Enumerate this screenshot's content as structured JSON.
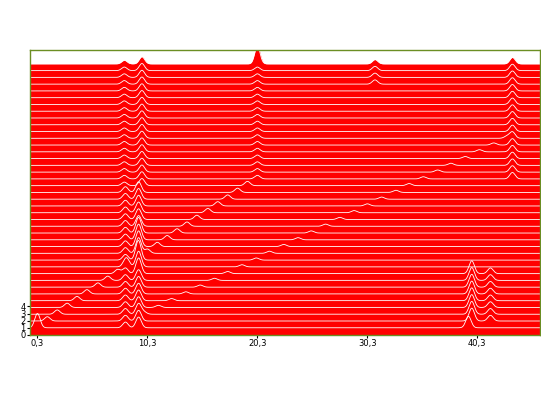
{
  "chart_data": {
    "type": "waterfall",
    "color": "#ff0000",
    "xlim": [
      -0.4,
      46.0
    ],
    "ylim": [
      0,
      40
    ],
    "xticks": [
      {
        "value": 0.3,
        "label": "0,3"
      },
      {
        "value": 10.3,
        "label": "10,3"
      },
      {
        "value": 20.3,
        "label": "20,3"
      },
      {
        "value": 30.3,
        "label": "30,3"
      },
      {
        "value": 40.3,
        "label": "40,3"
      }
    ],
    "yticks": [
      0,
      1,
      2,
      3,
      4
    ],
    "series": [
      {
        "baseline": 1.0,
        "peaks": [
          [
            0.3,
            2.0
          ],
          [
            9.5,
            1.5
          ],
          [
            8.3,
            0.8
          ],
          [
            39.5,
            1.6
          ]
        ]
      },
      {
        "baseline": 1.95,
        "peaks": [
          [
            1.2,
            0.6
          ],
          [
            9.5,
            1.5
          ],
          [
            8.3,
            0.8
          ],
          [
            39.8,
            1.8
          ],
          [
            41.5,
            0.8
          ]
        ]
      },
      {
        "baseline": 2.9,
        "peaks": [
          [
            2.1,
            0.6
          ],
          [
            9.5,
            1.5
          ],
          [
            8.3,
            0.8
          ],
          [
            10.0,
            0.3
          ],
          [
            39.8,
            1.8
          ],
          [
            41.5,
            0.8
          ]
        ]
      },
      {
        "baseline": 3.85,
        "peaks": [
          [
            3.0,
            0.6
          ],
          [
            9.5,
            1.5
          ],
          [
            8.3,
            0.8
          ],
          [
            11.3,
            0.3
          ],
          [
            39.8,
            1.8
          ],
          [
            41.5,
            0.8
          ]
        ]
      },
      {
        "baseline": 4.8,
        "peaks": [
          [
            3.9,
            0.6
          ],
          [
            9.5,
            1.5
          ],
          [
            8.3,
            0.8
          ],
          [
            12.5,
            0.3
          ],
          [
            39.8,
            1.8
          ],
          [
            41.5,
            0.8
          ]
        ]
      },
      {
        "baseline": 5.75,
        "peaks": [
          [
            4.8,
            0.6
          ],
          [
            9.5,
            1.5
          ],
          [
            8.3,
            0.8
          ],
          [
            13.8,
            0.3
          ],
          [
            39.8,
            1.8
          ],
          [
            41.5,
            0.8
          ]
        ]
      },
      {
        "baseline": 6.7,
        "peaks": [
          [
            5.8,
            0.6
          ],
          [
            9.5,
            1.5
          ],
          [
            8.3,
            0.8
          ],
          [
            15.1,
            0.3
          ],
          [
            39.8,
            1.8
          ],
          [
            41.5,
            0.8
          ]
        ]
      },
      {
        "baseline": 7.65,
        "peaks": [
          [
            6.7,
            0.6
          ],
          [
            9.5,
            1.5
          ],
          [
            8.3,
            0.8
          ],
          [
            16.4,
            0.3
          ],
          [
            39.8,
            1.8
          ],
          [
            41.5,
            0.8
          ]
        ]
      },
      {
        "baseline": 8.6,
        "peaks": [
          [
            7.6,
            0.6
          ],
          [
            9.5,
            2.2
          ],
          [
            8.3,
            0.8
          ],
          [
            17.6,
            0.3
          ],
          [
            39.8,
            1.8
          ],
          [
            41.5,
            0.8
          ]
        ]
      },
      {
        "baseline": 9.55,
        "peaks": [
          [
            8.5,
            0.6
          ],
          [
            9.5,
            2.2
          ],
          [
            8.3,
            0.8
          ],
          [
            18.9,
            0.3
          ]
        ]
      },
      {
        "baseline": 10.5,
        "peaks": [
          [
            9.4,
            0.6
          ],
          [
            9.5,
            2.2
          ],
          [
            8.3,
            0.8
          ],
          [
            20.2,
            0.3
          ]
        ]
      },
      {
        "baseline": 11.45,
        "peaks": [
          [
            10.3,
            0.6
          ],
          [
            9.5,
            2.2
          ],
          [
            8.3,
            0.8
          ],
          [
            21.4,
            0.3
          ]
        ]
      },
      {
        "baseline": 12.4,
        "peaks": [
          [
            11.2,
            0.6
          ],
          [
            9.5,
            2.2
          ],
          [
            8.3,
            0.8
          ],
          [
            22.7,
            0.3
          ]
        ]
      },
      {
        "baseline": 13.35,
        "peaks": [
          [
            12.1,
            0.6
          ],
          [
            9.5,
            2.2
          ],
          [
            8.3,
            0.8
          ],
          [
            24.0,
            0.3
          ]
        ]
      },
      {
        "baseline": 14.3,
        "peaks": [
          [
            13.0,
            0.6
          ],
          [
            9.5,
            2.2
          ],
          [
            8.3,
            0.8
          ],
          [
            25.2,
            0.3
          ]
        ]
      },
      {
        "baseline": 15.25,
        "peaks": [
          [
            13.9,
            0.6
          ],
          [
            9.5,
            1.5
          ],
          [
            8.3,
            0.8
          ],
          [
            26.5,
            0.3
          ]
        ]
      },
      {
        "baseline": 16.2,
        "peaks": [
          [
            14.8,
            0.6
          ],
          [
            9.5,
            1.5
          ],
          [
            8.3,
            0.8
          ],
          [
            27.8,
            0.3
          ]
        ]
      },
      {
        "baseline": 17.15,
        "peaks": [
          [
            15.8,
            0.6
          ],
          [
            9.5,
            1.5
          ],
          [
            8.3,
            0.8
          ],
          [
            29.1,
            0.3
          ]
        ]
      },
      {
        "baseline": 18.1,
        "peaks": [
          [
            16.7,
            0.6
          ],
          [
            9.5,
            1.5
          ],
          [
            8.3,
            0.8
          ],
          [
            30.3,
            0.3
          ]
        ]
      },
      {
        "baseline": 19.05,
        "peaks": [
          [
            17.6,
            0.6
          ],
          [
            9.5,
            1.5
          ],
          [
            8.3,
            0.8
          ],
          [
            31.6,
            0.3
          ]
        ]
      },
      {
        "baseline": 20.0,
        "peaks": [
          [
            18.5,
            0.6
          ],
          [
            9.5,
            1.5
          ],
          [
            8.3,
            0.8
          ],
          [
            32.9,
            0.3
          ]
        ]
      },
      {
        "baseline": 20.95,
        "peaks": [
          [
            19.4,
            0.6
          ],
          [
            9.8,
            1.0
          ],
          [
            8.2,
            0.5
          ],
          [
            34.1,
            0.3
          ]
        ]
      },
      {
        "baseline": 21.9,
        "peaks": [
          [
            20.3,
            0.5
          ],
          [
            9.8,
            1.0
          ],
          [
            8.2,
            0.5
          ],
          [
            35.4,
            0.3
          ],
          [
            43.5,
            0.9
          ]
        ]
      },
      {
        "baseline": 22.85,
        "peaks": [
          [
            20.3,
            0.5
          ],
          [
            9.8,
            1.0
          ],
          [
            8.2,
            0.5
          ],
          [
            36.7,
            0.3
          ],
          [
            43.5,
            0.9
          ]
        ]
      },
      {
        "baseline": 23.8,
        "peaks": [
          [
            20.3,
            0.5
          ],
          [
            9.8,
            1.0
          ],
          [
            8.2,
            0.5
          ],
          [
            37.9,
            0.3
          ],
          [
            43.5,
            0.9
          ]
        ]
      },
      {
        "baseline": 24.75,
        "peaks": [
          [
            20.3,
            0.5
          ],
          [
            9.8,
            1.0
          ],
          [
            8.2,
            0.5
          ],
          [
            39.2,
            0.3
          ],
          [
            43.5,
            0.9
          ]
        ]
      },
      {
        "baseline": 25.7,
        "peaks": [
          [
            20.3,
            0.5
          ],
          [
            9.8,
            1.0
          ],
          [
            8.2,
            0.5
          ],
          [
            40.5,
            0.3
          ],
          [
            43.5,
            0.9
          ]
        ]
      },
      {
        "baseline": 26.65,
        "peaks": [
          [
            20.3,
            0.5
          ],
          [
            9.8,
            1.0
          ],
          [
            8.2,
            0.5
          ],
          [
            41.8,
            0.3
          ],
          [
            43.5,
            0.9
          ]
        ]
      },
      {
        "baseline": 27.6,
        "peaks": [
          [
            20.3,
            0.5
          ],
          [
            9.8,
            1.0
          ],
          [
            8.2,
            0.5
          ],
          [
            43.0,
            0.3
          ],
          [
            43.5,
            0.9
          ]
        ]
      },
      {
        "baseline": 28.55,
        "peaks": [
          [
            20.3,
            0.5
          ],
          [
            9.8,
            1.0
          ],
          [
            8.2,
            0.5
          ],
          [
            43.5,
            0.9
          ]
        ]
      },
      {
        "baseline": 29.5,
        "peaks": [
          [
            20.3,
            0.5
          ],
          [
            9.8,
            1.0
          ],
          [
            8.2,
            0.5
          ],
          [
            43.5,
            0.9
          ]
        ]
      },
      {
        "baseline": 30.45,
        "peaks": [
          [
            20.3,
            0.5
          ],
          [
            9.8,
            1.0
          ],
          [
            8.2,
            0.5
          ],
          [
            43.5,
            0.9
          ]
        ]
      },
      {
        "baseline": 31.4,
        "peaks": [
          [
            20.3,
            0.5
          ],
          [
            9.8,
            1.0
          ],
          [
            8.2,
            0.5
          ],
          [
            43.5,
            0.9
          ]
        ]
      },
      {
        "baseline": 32.35,
        "peaks": [
          [
            20.3,
            0.5
          ],
          [
            9.8,
            1.0
          ],
          [
            8.2,
            0.5
          ],
          [
            43.5,
            0.9
          ]
        ]
      },
      {
        "baseline": 33.3,
        "peaks": [
          [
            20.3,
            0.5
          ],
          [
            9.8,
            1.0
          ],
          [
            8.2,
            0.5
          ],
          [
            43.5,
            0.9
          ]
        ]
      },
      {
        "baseline": 34.25,
        "peaks": [
          [
            20.3,
            0.5
          ],
          [
            9.8,
            1.0
          ],
          [
            8.2,
            0.5
          ],
          [
            43.5,
            0.9
          ]
        ]
      },
      {
        "baseline": 35.2,
        "peaks": [
          [
            20.3,
            0.5
          ],
          [
            9.8,
            1.0
          ],
          [
            8.2,
            0.5
          ],
          [
            31.0,
            0.6
          ],
          [
            43.5,
            0.9
          ]
        ]
      },
      {
        "baseline": 36.15,
        "peaks": [
          [
            20.3,
            0.5
          ],
          [
            9.8,
            1.0
          ],
          [
            8.2,
            0.5
          ],
          [
            31.0,
            0.6
          ],
          [
            43.5,
            0.9
          ]
        ]
      },
      {
        "baseline": 37.1,
        "peaks": [
          [
            20.3,
            0.5
          ],
          [
            9.8,
            1.0
          ],
          [
            8.2,
            0.5
          ],
          [
            31.0,
            0.6
          ],
          [
            43.5,
            0.9
          ]
        ]
      },
      {
        "baseline": 38.05,
        "peaks": [
          [
            20.3,
            2.5
          ],
          [
            9.8,
            1.0
          ],
          [
            8.2,
            0.5
          ],
          [
            31.0,
            0.6
          ],
          [
            43.5,
            0.9
          ]
        ]
      }
    ]
  }
}
